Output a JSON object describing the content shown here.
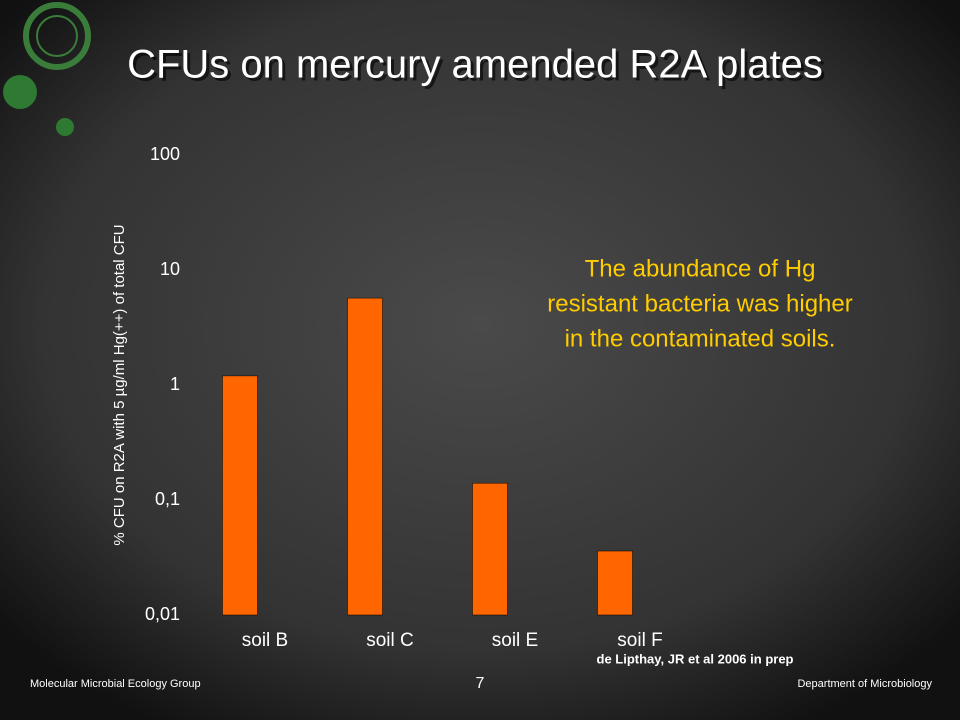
{
  "chart_data": {
    "type": "bar",
    "title": "CFUs on mercury amended R2A plates",
    "y_label": "% CFU on R2A with 5 µg/ml Hg(++) of total CFU",
    "categories": [
      "soil B",
      "soil C",
      "soil E",
      "soil F"
    ],
    "values": [
      1.2,
      5.7,
      0.14,
      0.036
    ],
    "color": "#ff6600",
    "log_y": true,
    "ylim": [
      0.01,
      100
    ],
    "yticks": [
      100,
      10,
      1,
      {
        "value": 0.1,
        "label": "0,1"
      },
      {
        "value": 0.01,
        "label": "0,01"
      }
    ],
    "annotation": [
      "The abundance of Hg",
      "resistant bacteria was higher",
      "in the contaminated soils."
    ],
    "source": "de Lipthay, JR et al 2006 in prep"
  },
  "footer": {
    "left": "Molecular Microbial Ecology Group",
    "page": "7",
    "right": "Department of Microbiology"
  }
}
